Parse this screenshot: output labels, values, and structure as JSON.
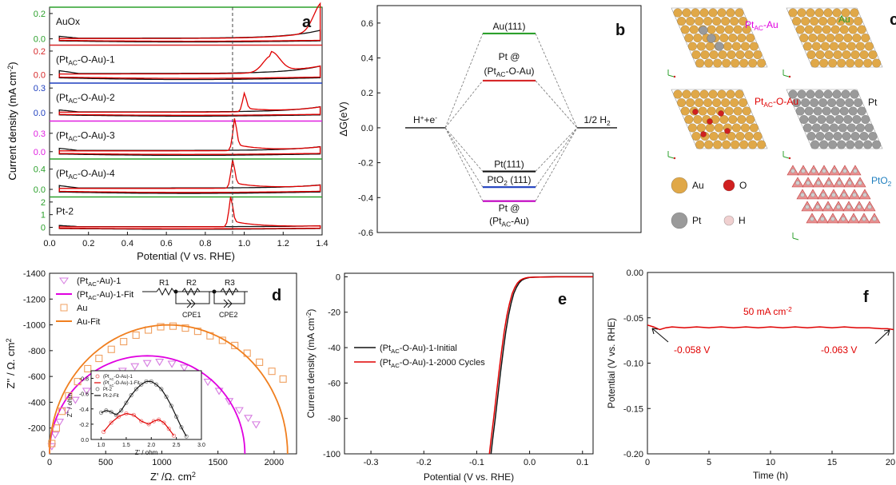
{
  "chart_data": [
    {
      "panel": "a",
      "type": "line",
      "xlabel": "Potential (V vs. RHE)",
      "ylabel": "Current density (mA cm-2)",
      "ylabel_parts": [
        "Current density (mA cm",
        "-2",
        ")"
      ],
      "xlim": [
        0.0,
        1.4
      ],
      "xticks": [
        "0.0",
        "0.2",
        "0.4",
        "0.6",
        "0.8",
        "1.0",
        "1.2",
        "1.4"
      ],
      "dashed_line_x": 0.94,
      "subplots": [
        {
          "label": "AuOx",
          "label_parts": [
            [
              "AuOx",
              ""
            ]
          ],
          "axis_color": "#2ca02c",
          "yticks": [
            "0.0",
            "0.2"
          ],
          "ylim": [
            -0.05,
            0.25
          ],
          "peak_x": 1.4,
          "peak_y": 0.22,
          "loop_halfwidth": 0.025
        },
        {
          "label": "(PtAC-O-Au)-1",
          "label_parts": [
            [
              "(Pt",
              ""
            ],
            [
              "AC",
              "sub"
            ],
            [
              "-O-Au)-1",
              ""
            ]
          ],
          "axis_color": "#d62728",
          "yticks": [
            "0.0",
            "0.2"
          ],
          "ylim": [
            -0.07,
            0.25
          ],
          "peak_x": 1.14,
          "peak_y": 0.14,
          "loop_halfwidth": 0.04
        },
        {
          "label": "(PtAC-O-Au)-2",
          "label_parts": [
            [
              "(Pt",
              ""
            ],
            [
              "AC",
              "sub"
            ],
            [
              "-O-Au)-2",
              ""
            ]
          ],
          "axis_color": "#1f3fbf",
          "yticks": [
            "0.0",
            "0.3"
          ],
          "ylim": [
            -0.1,
            0.36
          ],
          "peak_x": 1.0,
          "peak_y": 0.18,
          "loop_halfwidth": 0.04
        },
        {
          "label": "(PtAC-O-Au)-3",
          "label_parts": [
            [
              "(Pt",
              ""
            ],
            [
              "AC",
              "sub"
            ],
            [
              "-O-Au)-3",
              ""
            ]
          ],
          "axis_color": "#e020e0",
          "yticks": [
            "0.0",
            "0.3"
          ],
          "ylim": [
            -0.12,
            0.5
          ],
          "peak_x": 0.95,
          "peak_y": 0.42,
          "loop_halfwidth": 0.06
        },
        {
          "label": "(PtAC-O-Au)-4",
          "label_parts": [
            [
              "(Pt",
              ""
            ],
            [
              "AC",
              "sub"
            ],
            [
              "-O-Au)-4",
              ""
            ]
          ],
          "axis_color": "#2ca02c",
          "yticks": [
            "0.0",
            "0.4"
          ],
          "ylim": [
            -0.15,
            0.6
          ],
          "peak_x": 0.94,
          "peak_y": 0.45,
          "loop_halfwidth": 0.08
        },
        {
          "label": "Pt-2",
          "label_parts": [
            [
              "Pt-2",
              ""
            ]
          ],
          "axis_color": "#2ca02c",
          "yticks": [
            "0",
            "1",
            "2"
          ],
          "ylim": [
            -0.6,
            2.4
          ],
          "peak_x": 0.93,
          "peak_y": 1.9,
          "loop_halfwidth": 0.15
        }
      ]
    },
    {
      "panel": "b",
      "type": "energy-level diagram",
      "ylabel": "ΔG(eV)",
      "ylim": [
        -0.6,
        0.7
      ],
      "yticks": [
        "-0.6",
        "-0.4",
        "-0.2",
        "0.0",
        "0.2",
        "0.4",
        "0.6"
      ],
      "left_label_parts": [
        [
          "H",
          ""
        ],
        [
          "+",
          "sup"
        ],
        [
          "+e",
          ""
        ],
        [
          "-",
          "sup"
        ]
      ],
      "right_label_parts": [
        [
          "1/2 H",
          ""
        ],
        [
          "2",
          "sub"
        ]
      ],
      "levels": [
        {
          "name": "Au(111)",
          "value": 0.54,
          "color": "#2ca02c",
          "label_parts": [
            [
              "Au(111)",
              ""
            ]
          ],
          "pos": "above"
        },
        {
          "name": "Pt @ (PtAC-O-Au)",
          "value": 0.27,
          "color": "#d62728",
          "label_parts": [
            [
              "Pt @",
              ""
            ]
          ],
          "label2_parts": [
            [
              "(Pt",
              ""
            ],
            [
              "AC",
              "sub"
            ],
            [
              "-O-Au)",
              ""
            ]
          ],
          "pos": "above2"
        },
        {
          "name": "Pt(111)",
          "value": -0.25,
          "color": "#111111",
          "label_parts": [
            [
              "Pt(111)",
              ""
            ]
          ],
          "pos": "above"
        },
        {
          "name": "PtO2 (111)",
          "value": -0.34,
          "color": "#1f3fbf",
          "label_parts": [
            [
              "PtO",
              ""
            ],
            [
              "2",
              "sub"
            ],
            [
              " (111)",
              ""
            ]
          ],
          "pos": "above"
        },
        {
          "name": "Pt @ (PtAC-Au)",
          "value": -0.42,
          "color": "#c000c0",
          "label_parts": [
            [
              "Pt @",
              ""
            ]
          ],
          "label2_parts": [
            [
              "(Pt",
              ""
            ],
            [
              "AC",
              "sub"
            ],
            [
              "-Au)",
              ""
            ]
          ],
          "pos": "below2"
        }
      ]
    },
    {
      "panel": "d",
      "type": "scatter",
      "xlabel": "Z' /Ω. cm2",
      "xlabel_parts": [
        [
          "Z' /Ω. cm",
          ""
        ],
        [
          "2",
          "sup"
        ]
      ],
      "ylabel": "Z'' / Ω. cm2",
      "ylabel_parts": [
        [
          "Z'' / Ω. cm",
          ""
        ],
        [
          "2",
          "sup"
        ]
      ],
      "xlim": [
        0,
        2200
      ],
      "ylim": [
        0,
        -1400
      ],
      "xticks": [
        "0",
        "500",
        "1000",
        "1500",
        "2000"
      ],
      "yticks": [
        "-1400",
        "-1200",
        "-1000",
        "-800",
        "-600",
        "-400",
        "-200",
        "0"
      ],
      "series": [
        {
          "name": "(PtAC-Au)-1",
          "kind": "points",
          "marker": "triangle-down",
          "color": "#d67be0",
          "name_parts": [
            [
              "(Pt",
              ""
            ],
            [
              "AC",
              "sub"
            ],
            [
              "-Au)-1",
              ""
            ]
          ],
          "x": [
            20,
            50,
            90,
            150,
            230,
            330,
            430,
            540,
            650,
            760,
            870,
            980,
            1090,
            1200,
            1310,
            1410,
            1510,
            1600,
            1690,
            1770,
            1840
          ],
          "y": [
            -60,
            -150,
            -250,
            -340,
            -420,
            -490,
            -550,
            -600,
            -645,
            -680,
            -705,
            -715,
            -700,
            -670,
            -625,
            -560,
            -490,
            -410,
            -340,
            -280,
            -230
          ]
        },
        {
          "name": "(PtAC-Au)-1-Fit",
          "kind": "arc",
          "color": "#e000e0",
          "center": 870,
          "radius": 870,
          "height": 760,
          "name_parts": [
            [
              "(Pt",
              ""
            ],
            [
              "AC",
              "sub"
            ],
            [
              "-Au)-1-Fit",
              ""
            ]
          ]
        },
        {
          "name": "Au",
          "kind": "points",
          "marker": "square",
          "color": "#f0a060",
          "name_parts": [
            [
              "Au",
              ""
            ]
          ],
          "x": [
            20,
            60,
            110,
            170,
            250,
            340,
            440,
            550,
            660,
            770,
            880,
            990,
            1100,
            1210,
            1320,
            1430,
            1540,
            1650,
            1760,
            1870,
            1980,
            2080
          ],
          "y": [
            -80,
            -200,
            -330,
            -450,
            -560,
            -660,
            -740,
            -810,
            -870,
            -920,
            -960,
            -985,
            -990,
            -975,
            -950,
            -915,
            -880,
            -840,
            -780,
            -710,
            -640,
            -580
          ]
        },
        {
          "name": "Au-Fit",
          "kind": "arc",
          "color": "#f07f1f",
          "center": 1060,
          "radius": 1060,
          "height": 1000,
          "name_parts": [
            [
              "Au-Fit",
              ""
            ]
          ]
        }
      ],
      "circuit_labels": [
        "R1",
        "R2",
        "R3",
        "CPE1",
        "CPE2"
      ],
      "inset": {
        "xlabel": "Z' / ohm",
        "ylabel": "Z'' / ohm",
        "xticks": [
          "1.0",
          "1.5",
          "2.0",
          "2.5",
          "3.0"
        ],
        "yticks": [
          "-0.8",
          "-0.6",
          "-0.4",
          "-0.2",
          "0.0"
        ],
        "xlim": [
          0.8,
          3.0
        ],
        "ylim": [
          0,
          -0.9
        ],
        "legend": [
          {
            "name": "(PtAC-O-Au)-1",
            "color": "#f08080",
            "kind": "point",
            "parts": [
              [
                "(Pt",
                ""
              ],
              [
                "AC",
                "sub"
              ],
              [
                "-O-Au)-1",
                ""
              ]
            ]
          },
          {
            "name": "(PtAC-O-Au)-1-Fit",
            "color": "#e00000",
            "kind": "line",
            "parts": [
              [
                "(Pt",
                ""
              ],
              [
                "AC",
                "sub"
              ],
              [
                "-O-Au)-1-Fit",
                ""
              ]
            ]
          },
          {
            "name": "Pt-2",
            "color": "#888888",
            "kind": "point",
            "parts": [
              [
                "Pt-2",
                ""
              ]
            ]
          },
          {
            "name": "Pt-2-Fit",
            "color": "#111111",
            "kind": "line",
            "parts": [
              [
                "Pt-2-Fit",
                ""
              ]
            ]
          }
        ],
        "series": [
          {
            "name": "Pt-2",
            "color": "#888888",
            "x": [
              1.0,
              1.1,
              1.2,
              1.3,
              1.4,
              1.5,
              1.6,
              1.7,
              1.8,
              1.9,
              2.0,
              2.1,
              2.2,
              2.3,
              2.4,
              2.5,
              2.6,
              2.7
            ],
            "y": [
              -0.35,
              -0.38,
              -0.36,
              -0.32,
              -0.38,
              -0.48,
              -0.58,
              -0.66,
              -0.72,
              -0.76,
              -0.76,
              -0.72,
              -0.66,
              -0.56,
              -0.44,
              -0.3,
              -0.16,
              -0.04
            ]
          },
          {
            "name": "(PtAC-O-Au)-1",
            "color": "#f08080",
            "x": [
              1.05,
              1.2,
              1.35,
              1.5,
              1.65,
              1.8,
              1.95,
              2.05,
              2.15,
              2.25,
              2.35,
              2.45
            ],
            "y": [
              -0.1,
              -0.22,
              -0.3,
              -0.34,
              -0.32,
              -0.24,
              -0.2,
              -0.24,
              -0.26,
              -0.22,
              -0.14,
              -0.05
            ]
          }
        ]
      }
    },
    {
      "panel": "e",
      "type": "line",
      "xlabel": "Potential (V vs. RHE)",
      "ylabel": "Current density (mA cm-2)",
      "ylabel_parts": [
        [
          "Current density (mA cm",
          ""
        ],
        [
          "-2",
          "sup"
        ],
        [
          ")",
          ""
        ]
      ],
      "xlim": [
        -0.35,
        0.12
      ],
      "ylim": [
        -100,
        2
      ],
      "xticks": [
        "-0.3",
        "-0.2",
        "-0.1",
        "0.0",
        "0.1"
      ],
      "yticks": [
        "-100",
        "-80",
        "-60",
        "-40",
        "-20",
        "0"
      ],
      "series": [
        {
          "name": "(PtAC-O-Au)-1-Initial",
          "color": "#111111",
          "name_parts": [
            [
              "(Pt",
              ""
            ],
            [
              "AC",
              "sub"
            ],
            [
              "-O-Au)-1-Initial",
              ""
            ]
          ],
          "x": [
            -0.073,
            -0.07,
            -0.065,
            -0.06,
            -0.055,
            -0.05,
            -0.045,
            -0.04,
            -0.035,
            -0.03,
            -0.025,
            -0.02,
            -0.015,
            -0.01,
            -0.005,
            0.0,
            0.01,
            0.02,
            0.05,
            0.12
          ],
          "y": [
            -100,
            -92,
            -80,
            -67,
            -54,
            -42,
            -31,
            -22,
            -15,
            -9.5,
            -6,
            -3.5,
            -2,
            -1.2,
            -0.7,
            -0.4,
            -0.2,
            -0.1,
            0,
            0
          ]
        },
        {
          "name": "(PtAC-O-Au)-1-2000 Cycles",
          "color": "#e00000",
          "name_parts": [
            [
              "(Pt",
              ""
            ],
            [
              "AC",
              "sub"
            ],
            [
              "-O-Au)-1-2000 Cycles",
              ""
            ]
          ],
          "x": [
            -0.076,
            -0.073,
            -0.068,
            -0.063,
            -0.058,
            -0.053,
            -0.048,
            -0.043,
            -0.038,
            -0.033,
            -0.028,
            -0.023,
            -0.018,
            -0.013,
            -0.008,
            -0.003,
            0.01,
            0.02,
            0.05,
            0.12
          ],
          "y": [
            -100,
            -92,
            -80,
            -67,
            -54,
            -42,
            -31,
            -22,
            -15,
            -9.5,
            -6,
            -3.5,
            -2,
            -1.2,
            -0.7,
            -0.4,
            -0.2,
            -0.1,
            0,
            0
          ]
        }
      ]
    },
    {
      "panel": "f",
      "type": "line",
      "xlabel": "Time (h)",
      "ylabel": "Potential (V vs. RHE)",
      "xlim": [
        0,
        20
      ],
      "ylim": [
        -0.2,
        0.0
      ],
      "xticks": [
        "0",
        "5",
        "10",
        "15",
        "20"
      ],
      "yticks": [
        "0.00",
        "-0.05",
        "-0.10",
        "-0.15",
        "-0.20"
      ],
      "annotation_parts": [
        [
          "50 mA cm",
          ""
        ],
        [
          "-2",
          "sup"
        ]
      ],
      "start_label": "-0.058 V",
      "end_label": "-0.063 V",
      "series": [
        {
          "name": "chronopotentiometry",
          "color": "#e00000",
          "x": [
            0,
            0.5,
            1,
            1.5,
            2,
            3,
            4,
            5,
            6,
            7,
            8,
            9,
            10,
            11,
            12,
            13,
            14,
            15,
            16,
            17,
            18,
            19,
            19.5,
            20
          ],
          "y": [
            -0.058,
            -0.06,
            -0.063,
            -0.061,
            -0.06,
            -0.061,
            -0.06,
            -0.061,
            -0.06,
            -0.061,
            -0.06,
            -0.061,
            -0.06,
            -0.061,
            -0.06,
            -0.061,
            -0.06,
            -0.061,
            -0.06,
            -0.061,
            -0.061,
            -0.062,
            -0.062,
            -0.063
          ]
        }
      ]
    }
  ],
  "panel_letters": {
    "a": "a",
    "b": "b",
    "c": "c",
    "d": "d",
    "e": "e",
    "f": "f"
  },
  "panel_c": {
    "labels": [
      {
        "parts": [
          [
            "Pt",
            ""
          ],
          [
            "AC",
            "sub"
          ],
          [
            "-Au",
            ""
          ]
        ],
        "color": "#e000e0"
      },
      {
        "parts": [
          [
            "Au",
            ""
          ]
        ],
        "color": "#2ca02c"
      },
      {
        "parts": [
          [
            "Pt",
            ""
          ],
          [
            "AC",
            "sub"
          ],
          [
            "-O-Au",
            ""
          ]
        ],
        "color": "#e00000"
      },
      {
        "parts": [
          [
            "Pt",
            ""
          ]
        ],
        "color": "#111111"
      },
      {
        "parts": [
          [
            "PtO",
            ""
          ],
          [
            "2",
            "sub"
          ]
        ],
        "color": "#1f7fbf"
      }
    ],
    "legend": [
      "Au",
      "O",
      "Pt",
      "H"
    ],
    "atom_colors": {
      "Au": "#e0a848",
      "O": "#d02020",
      "Pt": "#9a9a9a",
      "H": "#f0d0d0"
    }
  }
}
